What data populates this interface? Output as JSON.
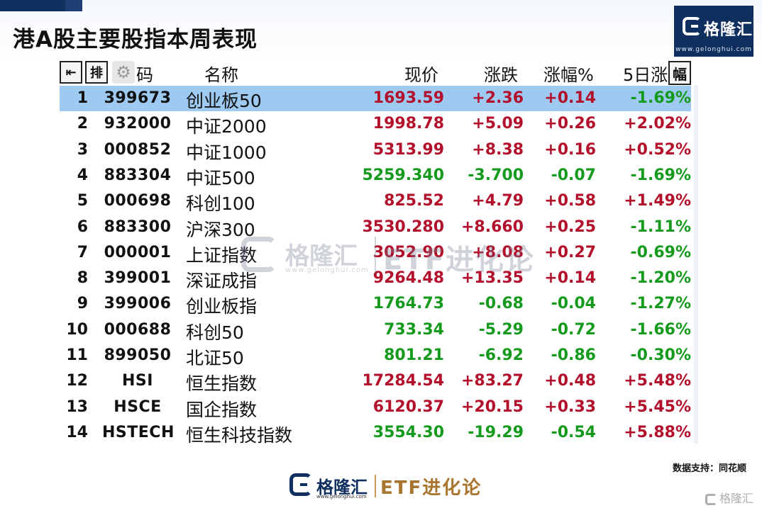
{
  "page": {
    "title": "港A股主要股指本周表现",
    "source_label": "数据支持：同花顺"
  },
  "brand": {
    "name": "格隆汇",
    "url": "www.gelonghui.com",
    "etf_label": "ETF进化论",
    "corner_label": "格隆汇"
  },
  "toolbar": {
    "back_icon": "⇤",
    "sort_label": "排",
    "gear_icon": "⚙",
    "end_label": "幅"
  },
  "headers": {
    "code": "码",
    "name": "名称",
    "price": "现价",
    "change": "涨跌",
    "change_pct": "涨幅%",
    "five_day": "5日涨"
  },
  "colors": {
    "up": "#b3102b",
    "down": "#159a1e",
    "selected_row": "#9ec9f1",
    "brand_navy": "#0f2f5e",
    "brand_gold": "#a8752e"
  },
  "rows": [
    {
      "no": "1",
      "code": "399673",
      "name": "创业板50",
      "price": "1693.59",
      "change": "+2.36",
      "pct": "+0.14",
      "five_day": "-1.69%",
      "price_dir": "up",
      "chg_dir": "up",
      "pct_dir": "up",
      "fd_dir": "down",
      "selected": true
    },
    {
      "no": "2",
      "code": "932000",
      "name": "中证2000",
      "price": "1998.78",
      "change": "+5.09",
      "pct": "+0.26",
      "five_day": "+2.02%",
      "price_dir": "up",
      "chg_dir": "up",
      "pct_dir": "up",
      "fd_dir": "up"
    },
    {
      "no": "3",
      "code": "000852",
      "name": "中证1000",
      "price": "5313.99",
      "change": "+8.38",
      "pct": "+0.16",
      "five_day": "+0.52%",
      "price_dir": "up",
      "chg_dir": "up",
      "pct_dir": "up",
      "fd_dir": "up"
    },
    {
      "no": "4",
      "code": "883304",
      "name": "中证500",
      "price": "5259.340",
      "change": "-3.700",
      "pct": "-0.07",
      "five_day": "-1.69%",
      "price_dir": "down",
      "chg_dir": "down",
      "pct_dir": "down",
      "fd_dir": "down"
    },
    {
      "no": "5",
      "code": "000698",
      "name": "科创100",
      "price": "825.52",
      "change": "+4.79",
      "pct": "+0.58",
      "five_day": "+1.49%",
      "price_dir": "up",
      "chg_dir": "up",
      "pct_dir": "up",
      "fd_dir": "up"
    },
    {
      "no": "6",
      "code": "883300",
      "name": "沪深300",
      "price": "3530.280",
      "change": "+8.660",
      "pct": "+0.25",
      "five_day": "-1.11%",
      "price_dir": "up",
      "chg_dir": "up",
      "pct_dir": "up",
      "fd_dir": "down"
    },
    {
      "no": "7",
      "code": "000001",
      "name": "上证指数",
      "price": "3052.90",
      "change": "+8.08",
      "pct": "+0.27",
      "five_day": "-0.69%",
      "price_dir": "up",
      "chg_dir": "up",
      "pct_dir": "up",
      "fd_dir": "down"
    },
    {
      "no": "8",
      "code": "399001",
      "name": "深证成指",
      "price": "9264.48",
      "change": "+13.35",
      "pct": "+0.14",
      "five_day": "-1.20%",
      "price_dir": "up",
      "chg_dir": "up",
      "pct_dir": "up",
      "fd_dir": "down"
    },
    {
      "no": "9",
      "code": "399006",
      "name": "创业板指",
      "price": "1764.73",
      "change": "-0.68",
      "pct": "-0.04",
      "five_day": "-1.27%",
      "price_dir": "down",
      "chg_dir": "down",
      "pct_dir": "down",
      "fd_dir": "down"
    },
    {
      "no": "10",
      "code": "000688",
      "name": "科创50",
      "price": "733.34",
      "change": "-5.29",
      "pct": "-0.72",
      "five_day": "-1.66%",
      "price_dir": "down",
      "chg_dir": "down",
      "pct_dir": "down",
      "fd_dir": "down"
    },
    {
      "no": "11",
      "code": "899050",
      "name": "北证50",
      "price": "801.21",
      "change": "-6.92",
      "pct": "-0.86",
      "five_day": "-0.30%",
      "price_dir": "down",
      "chg_dir": "down",
      "pct_dir": "down",
      "fd_dir": "down"
    },
    {
      "no": "12",
      "code": "HSI",
      "name": "恒生指数",
      "price": "17284.54",
      "change": "+83.27",
      "pct": "+0.48",
      "five_day": "+5.48%",
      "price_dir": "up",
      "chg_dir": "up",
      "pct_dir": "up",
      "fd_dir": "up"
    },
    {
      "no": "13",
      "code": "HSCE",
      "name": "国企指数",
      "price": "6120.37",
      "change": "+20.15",
      "pct": "+0.33",
      "five_day": "+5.45%",
      "price_dir": "up",
      "chg_dir": "up",
      "pct_dir": "up",
      "fd_dir": "up"
    },
    {
      "no": "14",
      "code": "HSTECH",
      "name": "恒生科技指数",
      "price": "3554.30",
      "change": "-19.29",
      "pct": "-0.54",
      "five_day": "+5.88%",
      "price_dir": "down",
      "chg_dir": "down",
      "pct_dir": "down",
      "fd_dir": "up"
    }
  ]
}
